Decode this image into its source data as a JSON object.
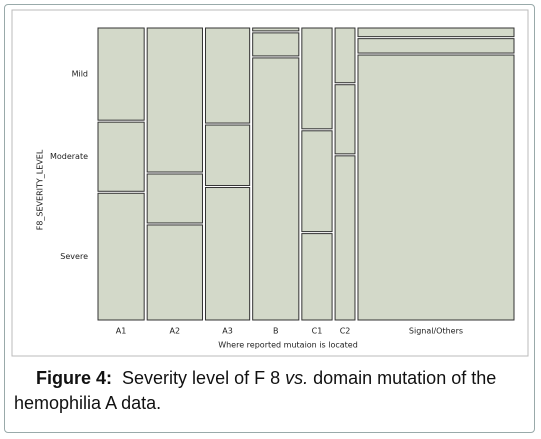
{
  "chart_data": {
    "type": "mosaic",
    "x_label": "Where reported mutaion is located",
    "y_label": "F8_SEVERITY_LEVEL",
    "categories": [
      "A1",
      "A2",
      "A3",
      "B",
      "C1",
      "C2",
      "Signal/Others"
    ],
    "widths": [
      11.6,
      13.9,
      11.1,
      11.6,
      7.6,
      5.0,
      39.2
    ],
    "series": [
      {
        "name": "Mild",
        "color": "#d3d9c9",
        "values": [
          32,
          50,
          33,
          1,
          35,
          19,
          3
        ]
      },
      {
        "name": "Moderate",
        "color": "#d3d9c9",
        "values": [
          24,
          17,
          21,
          8,
          35,
          24,
          5
        ]
      },
      {
        "name": "Severe",
        "color": "#d3d9c9",
        "values": [
          44,
          33,
          46,
          91,
          30,
          57,
          92
        ]
      }
    ]
  },
  "caption": {
    "label": "Figure 4:",
    "text1": "Severity level of F 8 ",
    "italic": "vs.",
    "text2": " domain  mutation of the hemophilia A data."
  }
}
